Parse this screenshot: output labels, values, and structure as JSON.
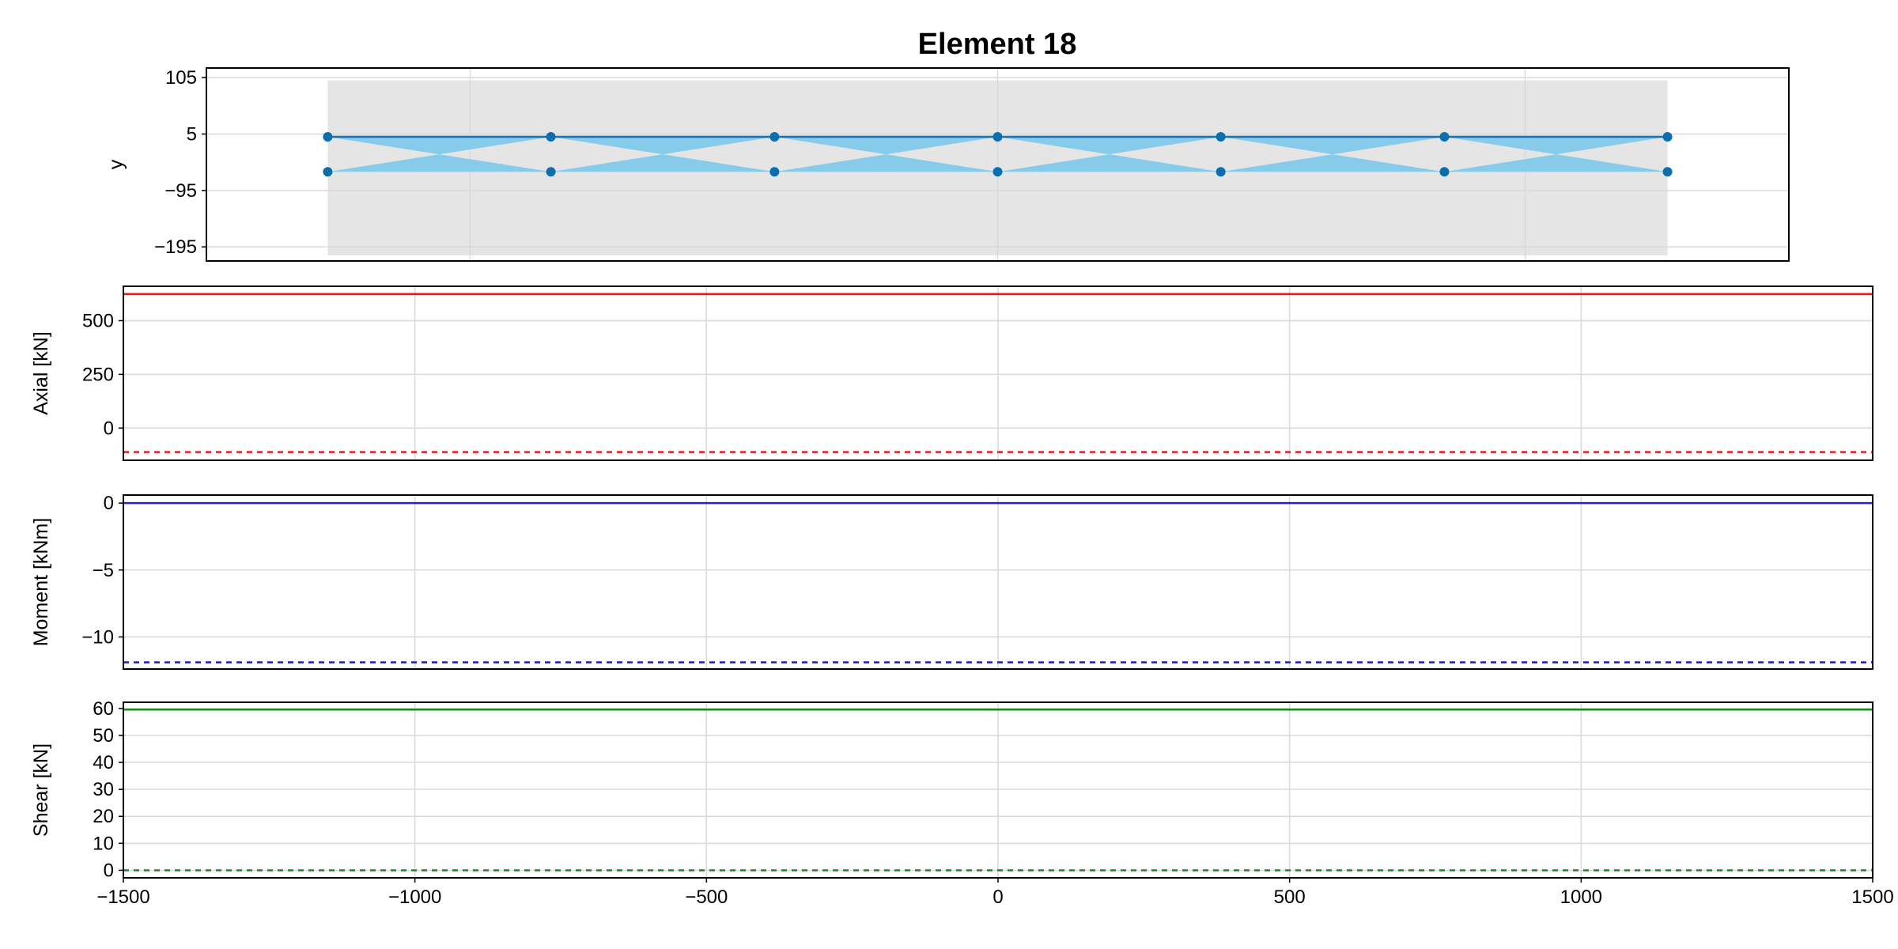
{
  "chart_data": [
    {
      "type": "scatter",
      "name": "section",
      "title": "Element 18",
      "xlabel": "",
      "ylabel": "y",
      "xlim": [
        -1500,
        1500
      ],
      "ylim": [
        -220,
        122
      ],
      "yticks": [
        105,
        5,
        -95,
        -195
      ],
      "yticklabels": [
        "105",
        "5",
        "−95",
        "−195"
      ],
      "xticks_grid": [
        -1000,
        0,
        1000
      ],
      "grid": true,
      "background_band": {
        "x": [
          -1270,
          1270
        ],
        "y": [
          -210,
          100
        ],
        "color": "#e5e5e5"
      },
      "fill_color": "#87cbea",
      "line_color": "#1f6fa8",
      "marker_color": "#0b6fae",
      "top_chord": {
        "x": [
          -1270,
          -847,
          -423,
          0,
          423,
          847,
          1270
        ],
        "y": [
          0,
          0,
          0,
          0,
          0,
          0,
          0
        ]
      },
      "bottom_chord": {
        "x": [
          -1270,
          -847,
          -423,
          0,
          423,
          847,
          1270
        ],
        "y": [
          -62,
          -62,
          -62,
          -62,
          -62,
          -62,
          -62
        ]
      }
    },
    {
      "type": "line",
      "name": "axial",
      "ylabel": "Axial [kN]",
      "xlim": [
        -1500,
        1500
      ],
      "ylim": [
        -150,
        660
      ],
      "yticks": [
        500,
        250,
        0
      ],
      "yticklabels": [
        "500",
        "250",
        "0"
      ],
      "xticks_grid": [
        -1000,
        -500,
        0,
        500,
        1000
      ],
      "grid": true,
      "series": [
        {
          "style": "solid",
          "color": "#e02020",
          "x": [
            -1500,
            1500
          ],
          "values": [
            624,
            624
          ]
        },
        {
          "style": "dashed",
          "color": "#e02020",
          "x": [
            -1500,
            1500
          ],
          "values": [
            -112,
            -112
          ]
        }
      ]
    },
    {
      "type": "line",
      "name": "moment",
      "ylabel": "Moment [kNm]",
      "xlim": [
        -1500,
        1500
      ],
      "ylim": [
        -12.4,
        0.6
      ],
      "yticks": [
        0,
        -5,
        -10
      ],
      "yticklabels": [
        "0",
        "−5",
        "−10"
      ],
      "xticks_grid": [
        -1000,
        -500,
        0,
        500,
        1000
      ],
      "grid": true,
      "series": [
        {
          "style": "solid",
          "color": "#2020e0",
          "x": [
            -1500,
            1500
          ],
          "values": [
            0,
            0
          ]
        },
        {
          "style": "dashed",
          "color": "#2020b0",
          "x": [
            -1500,
            1500
          ],
          "values": [
            -11.9,
            -11.9
          ]
        }
      ]
    },
    {
      "type": "line",
      "name": "shear",
      "ylabel": "Shear [kN]",
      "xlabel": "",
      "xlim": [
        -1500,
        1500
      ],
      "ylim": [
        -2.8,
        62.3
      ],
      "yticks": [
        60,
        50,
        40,
        30,
        20,
        10,
        0
      ],
      "yticklabels": [
        "60",
        "50",
        "40",
        "30",
        "20",
        "10",
        "0"
      ],
      "xticks": [
        -1500,
        -1000,
        -500,
        0,
        500,
        1000,
        1500
      ],
      "xticklabels": [
        "−1500",
        "−1000",
        "−500",
        "0",
        "500",
        "1000",
        "1500"
      ],
      "grid": true,
      "series": [
        {
          "style": "solid",
          "color": "#1a8a1a",
          "x": [
            -1500,
            1500
          ],
          "values": [
            59.6,
            59.6
          ]
        },
        {
          "style": "dashed",
          "color": "#1a8a1a",
          "x": [
            -1500,
            1500
          ],
          "values": [
            0,
            0
          ]
        }
      ]
    }
  ]
}
